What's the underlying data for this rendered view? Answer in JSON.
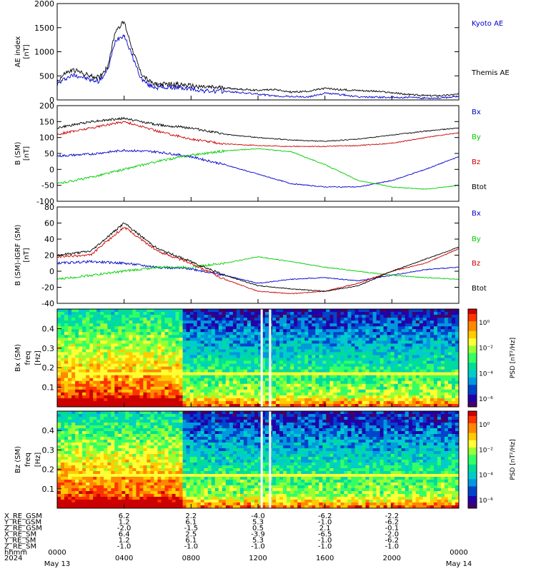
{
  "chart_data": [
    {
      "type": "line",
      "ylabel": "AE index",
      "yunits": "[nT]",
      "ylim": [
        0,
        2000
      ],
      "yticks": [
        "0",
        "500",
        "1000",
        "1500",
        "2000"
      ],
      "legend": [
        {
          "name": "Kyoto AE",
          "color": "#0000cc"
        },
        {
          "name": "Themis AE",
          "color": "#000000"
        }
      ],
      "series": [
        {
          "name": "Kyoto AE",
          "color": "#0000cc",
          "x": [
            0,
            0.5,
            1,
            1.5,
            2,
            2.5,
            3,
            3.5,
            4,
            4.5,
            5,
            5.5,
            6,
            7,
            8,
            9,
            10,
            11,
            12,
            13,
            14,
            15,
            16,
            17,
            18,
            19,
            20,
            21,
            22,
            23,
            24
          ],
          "y": [
            320,
            450,
            520,
            480,
            410,
            390,
            600,
            1250,
            1350,
            900,
            450,
            300,
            260,
            260,
            230,
            180,
            180,
            150,
            120,
            80,
            70,
            60,
            140,
            110,
            60,
            60,
            50,
            50,
            40,
            40,
            80
          ]
        },
        {
          "name": "Themis AE",
          "color": "#000000",
          "x": [
            0,
            0.5,
            1,
            1.5,
            2,
            2.5,
            3,
            3.5,
            4,
            4.5,
            5,
            5.5,
            6,
            7,
            8,
            9,
            10,
            11,
            12,
            13,
            14,
            15,
            16,
            17,
            18,
            19,
            20,
            21,
            22,
            23,
            24
          ],
          "y": [
            380,
            560,
            620,
            560,
            490,
            470,
            680,
            1450,
            1620,
            1050,
            560,
            380,
            320,
            330,
            290,
            260,
            250,
            220,
            200,
            220,
            160,
            180,
            240,
            210,
            200,
            180,
            150,
            110,
            90,
            90,
            120
          ]
        }
      ]
    },
    {
      "type": "line",
      "ylabel": "B (SM)",
      "yunits": "[nT]",
      "ylim": [
        -100,
        200
      ],
      "yticks": [
        "-100",
        "-50",
        "0",
        "50",
        "100",
        "150",
        "200"
      ],
      "legend": [
        {
          "name": "Bx",
          "color": "#0000cc"
        },
        {
          "name": "By",
          "color": "#00cc00"
        },
        {
          "name": "Bz",
          "color": "#cc0000"
        },
        {
          "name": "Btot",
          "color": "#000000"
        }
      ],
      "series": [
        {
          "name": "Bx",
          "color": "#0000cc",
          "x": [
            0,
            2,
            4,
            6,
            8,
            10,
            12,
            14,
            16,
            18,
            20,
            22,
            24
          ],
          "y": [
            42,
            48,
            60,
            55,
            40,
            15,
            -15,
            -45,
            -55,
            -55,
            -35,
            0,
            40
          ]
        },
        {
          "name": "By",
          "color": "#00cc00",
          "x": [
            0,
            2,
            4,
            6,
            8,
            10,
            12,
            14,
            16,
            18,
            20,
            22,
            24
          ],
          "y": [
            -45,
            -25,
            0,
            25,
            45,
            58,
            65,
            55,
            15,
            -35,
            -55,
            -62,
            -50
          ]
        },
        {
          "name": "Bz",
          "color": "#cc0000",
          "x": [
            0,
            2,
            4,
            6,
            8,
            10,
            12,
            14,
            16,
            18,
            20,
            22,
            24
          ],
          "y": [
            110,
            130,
            150,
            120,
            95,
            80,
            75,
            72,
            72,
            75,
            82,
            100,
            115
          ]
        },
        {
          "name": "Btot",
          "color": "#000000",
          "x": [
            0,
            2,
            4,
            6,
            8,
            10,
            12,
            14,
            16,
            18,
            20,
            22,
            24
          ],
          "y": [
            130,
            150,
            160,
            140,
            130,
            110,
            100,
            92,
            88,
            95,
            108,
            120,
            130
          ]
        }
      ]
    },
    {
      "type": "line",
      "ylabel": "B (SM)-IGRF (SM)",
      "yunits": "[nT]",
      "ylim": [
        -40,
        80
      ],
      "yticks": [
        "-40",
        "-20",
        "0",
        "20",
        "40",
        "60",
        "80"
      ],
      "legend": [
        {
          "name": "Bx",
          "color": "#0000cc"
        },
        {
          "name": "By",
          "color": "#00cc00"
        },
        {
          "name": "Bz",
          "color": "#cc0000"
        },
        {
          "name": "Btot",
          "color": "#000000"
        }
      ],
      "series": [
        {
          "name": "Bx",
          "color": "#0000cc",
          "x": [
            0,
            2,
            4,
            6,
            8,
            10,
            12,
            14,
            16,
            18,
            20,
            22,
            24
          ],
          "y": [
            10,
            12,
            10,
            5,
            3,
            -5,
            -15,
            -10,
            -8,
            -12,
            -5,
            2,
            5
          ]
        },
        {
          "name": "By",
          "color": "#00cc00",
          "x": [
            0,
            2,
            4,
            6,
            8,
            10,
            12,
            14,
            16,
            18,
            20,
            22,
            24
          ],
          "y": [
            -10,
            -5,
            0,
            5,
            5,
            10,
            18,
            12,
            5,
            0,
            -5,
            -8,
            -10
          ]
        },
        {
          "name": "Bz",
          "color": "#cc0000",
          "x": [
            0,
            2,
            4,
            6,
            8,
            10,
            12,
            14,
            16,
            18,
            20,
            22,
            24
          ],
          "y": [
            18,
            20,
            55,
            25,
            10,
            -10,
            -25,
            -28,
            -25,
            -15,
            0,
            10,
            28
          ]
        },
        {
          "name": "Btot",
          "color": "#000000",
          "x": [
            0,
            2,
            4,
            6,
            8,
            10,
            12,
            14,
            16,
            18,
            20,
            22,
            24
          ],
          "y": [
            20,
            25,
            60,
            28,
            12,
            -5,
            -18,
            -22,
            -25,
            -18,
            0,
            15,
            30
          ]
        }
      ]
    },
    {
      "type": "heatmap",
      "ylabel": "Bx (SM)",
      "ylabel2": "freq",
      "yunits": "[Hz]",
      "ylim": [
        0,
        0.5
      ],
      "yticks": [
        "0.1",
        "0.2",
        "0.3",
        "0.4"
      ],
      "colorbar_label": "PSD [nT²/Hz]",
      "colorbar_ticks": [
        "10⁰",
        "10⁻²",
        "10⁻⁴",
        "10⁻⁶"
      ],
      "quiet_hour": 7.5,
      "gap_hours": [
        12.2,
        12.7
      ]
    },
    {
      "type": "heatmap",
      "ylabel": "Bz (SM)",
      "ylabel2": "freq",
      "yunits": "[Hz]",
      "ylim": [
        0,
        0.5
      ],
      "yticks": [
        "0.1",
        "0.2",
        "0.3",
        "0.4"
      ],
      "colorbar_label": "PSD [nT²/Hz]",
      "colorbar_ticks": [
        "10⁰",
        "10⁻²",
        "10⁻⁴",
        "10⁻⁶"
      ],
      "quiet_hour": 7.5,
      "gap_hours": [
        12.2,
        12.7
      ]
    }
  ],
  "ephemeris": {
    "rows": [
      {
        "label": "X_RE_GSM",
        "values": [
          "6.2",
          "2.2",
          "-4.0",
          "-6.2",
          "-2.2"
        ]
      },
      {
        "label": "Y_RE_GSM",
        "values": [
          "1.2",
          "6.1",
          "5.3",
          "-1.0",
          "-6.2"
        ]
      },
      {
        "label": "Z_RE_GSM",
        "values": [
          "-2.0",
          "-1.5",
          "0.5",
          "2.1",
          "-0.1"
        ]
      },
      {
        "label": "X_RE_SM",
        "values": [
          "6.4",
          "2.5",
          "-3.9",
          "-6.5",
          "-2.0"
        ]
      },
      {
        "label": "Y_RE_SM",
        "values": [
          "1.2",
          "6.1",
          "5.3",
          "-1.0",
          "-6.2"
        ]
      },
      {
        "label": "Z_RE_SM",
        "values": [
          "-1.0",
          "-1.0",
          "-1.0",
          "-1.0",
          "-1.0"
        ]
      }
    ],
    "time_row_label": "hhmm",
    "year_label": "2024",
    "first_time": "0000",
    "last_time": "0000",
    "start_date": "May 13",
    "end_date": "May 14",
    "time_ticks": [
      "0400",
      "0800",
      "1200",
      "1600",
      "2000"
    ]
  }
}
